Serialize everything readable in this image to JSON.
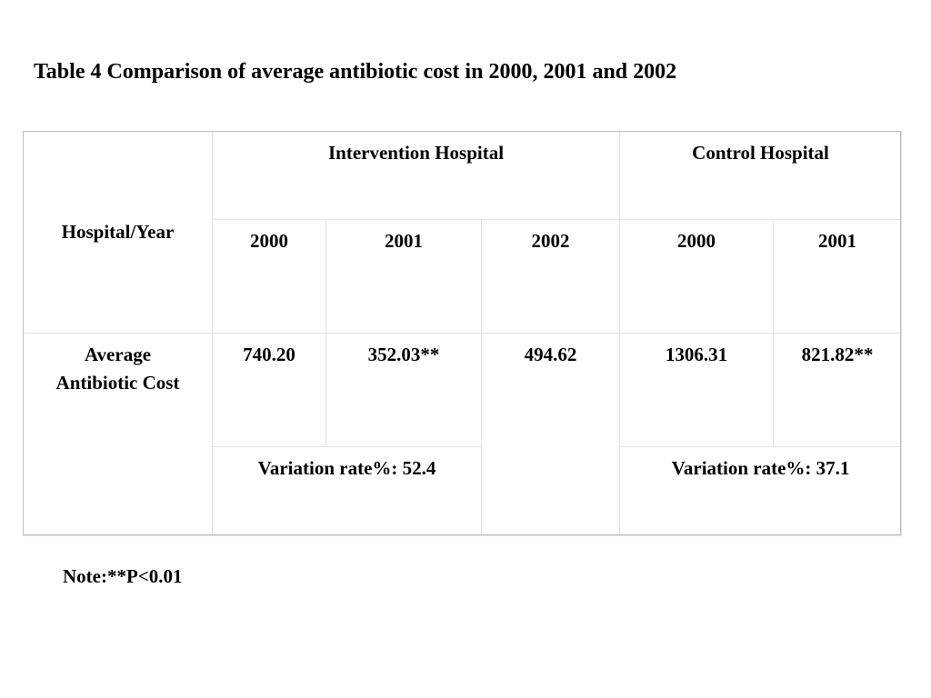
{
  "title": "Table 4 Comparison of average antibiotic cost in 2000, 2001 and 2002",
  "table": {
    "corner_label": "Hospital/Year",
    "group_headers": [
      "Intervention Hospital",
      "Control Hospital"
    ],
    "year_headers": [
      "2000",
      "2001",
      "2002",
      "2000",
      "2001"
    ],
    "row_label": "Average Antibiotic Cost",
    "values": [
      "740.20",
      "352.03**",
      "494.62",
      "1306.31",
      "821.82**"
    ],
    "variation_intervention": "Variation rate%: 52.4",
    "variation_control": "Variation rate%: 37.1"
  },
  "note": "Note:**P<0.01"
}
